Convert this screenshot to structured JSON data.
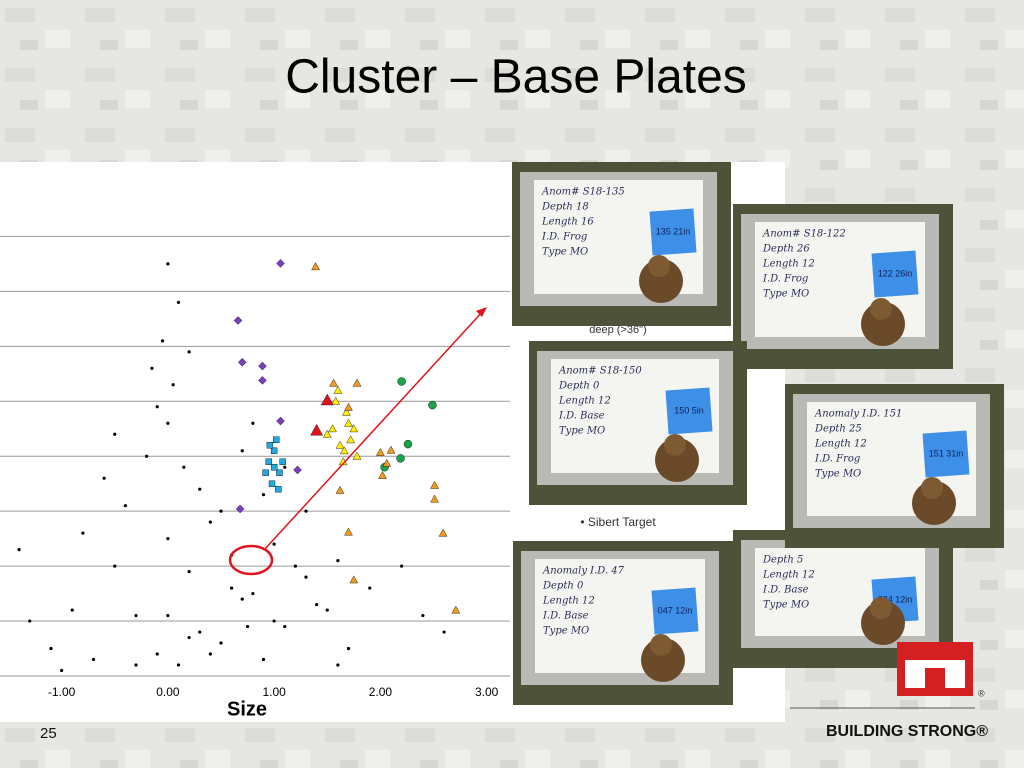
{
  "slide": {
    "title": "Cluster – Base Plates",
    "page_number": "25",
    "footer": "BUILDING STRONG®",
    "notes": [
      "deep (>36\")",
      "• Sibert Target"
    ]
  },
  "photos": [
    {
      "lines": [
        "Anom# S18-135",
        "Depth 18",
        "Length 16",
        "I.D. Frog",
        "Type MO"
      ],
      "tag": "135 21in"
    },
    {
      "lines": [
        "Anom# S18-122",
        "Depth 26",
        "Length 12",
        "I.D. Frog",
        "Type MO"
      ],
      "tag": "122 26in"
    },
    {
      "lines": [
        "Anom# S18-150",
        "Depth 0",
        "Length 12",
        "I.D. Base",
        "Type MO"
      ],
      "tag": "150 5in"
    },
    {
      "lines": [
        "Depth 5",
        "Length 12",
        "I.D. Base",
        "Type MO"
      ],
      "tag": "224 12in"
    },
    {
      "lines": [
        "Anomaly I.D. 151",
        "Depth 25",
        "Length 12",
        "I.D. Frog",
        "Type MO"
      ],
      "tag": "151 31in"
    },
    {
      "lines": [
        "Anomaly I.D. 47",
        "Depth 0",
        "Length 12",
        "I.D. Base",
        "Type MO"
      ],
      "tag": "047 12in"
    }
  ],
  "chart_data": {
    "type": "scatter",
    "xlabel": "Size",
    "xlim": [
      -1.58,
      3.22
    ],
    "ylim": [
      0,
      9.3
    ],
    "xticks": [
      {
        "value": -1,
        "label": "-1.00"
      },
      {
        "value": 0,
        "label": "0.00"
      },
      {
        "value": 1,
        "label": "1.00"
      },
      {
        "value": 2,
        "label": "2.00"
      },
      {
        "value": 3,
        "label": "3.00"
      }
    ],
    "yticks": [
      0,
      1,
      2,
      3,
      4,
      5,
      6,
      7,
      8
    ],
    "ytick_labels": false,
    "grid": true,
    "series": [
      {
        "color": "#000000",
        "marker": "circle",
        "x": [
          -1.1,
          -0.9,
          -0.7,
          -0.5,
          -0.3,
          -0.1,
          0.1,
          0.3,
          0.5,
          0.7,
          0.9,
          1.1,
          1.3,
          1.5,
          1.7,
          1.9,
          -0.8,
          -0.4,
          0.0,
          0.2,
          0.4,
          0.6,
          0.8,
          1.0,
          1.2,
          1.4,
          1.6,
          -0.6,
          -0.2,
          0.0,
          0.05,
          -0.05,
          0.1,
          0.2,
          -0.1,
          0.0,
          0.3,
          0.5,
          0.7,
          0.9,
          1.1,
          -1.3,
          -1.0,
          2.2,
          2.4,
          0.8,
          1.3,
          0.6,
          0.2,
          -0.3,
          0.15,
          -0.15,
          0.4,
          0.75,
          1.6,
          -1.4,
          2.6,
          -0.5,
          1.0,
          0.0
        ],
        "values": [
          0.5,
          1.2,
          0.3,
          2.0,
          1.1,
          0.4,
          0.2,
          0.8,
          0.6,
          1.4,
          0.3,
          0.9,
          1.8,
          1.2,
          0.5,
          1.6,
          2.6,
          3.1,
          2.5,
          1.9,
          2.8,
          2.2,
          1.5,
          2.4,
          2.0,
          1.3,
          2.1,
          3.6,
          4.0,
          4.6,
          5.3,
          6.1,
          6.8,
          5.9,
          4.9,
          7.5,
          3.4,
          3.0,
          4.1,
          3.3,
          3.8,
          1.0,
          0.1,
          2.0,
          1.1,
          4.6,
          3.0,
          1.6,
          0.7,
          0.2,
          3.8,
          5.6,
          0.4,
          0.9,
          0.2,
          2.3,
          0.8,
          4.4,
          1.0,
          1.1
        ]
      },
      {
        "color": "#ffee00",
        "marker": "triangle",
        "x": [
          1.55,
          1.62,
          1.68,
          1.72,
          1.78,
          1.6,
          1.65,
          1.7,
          1.5,
          1.58,
          1.75,
          1.66
        ],
        "values": [
          4.5,
          4.2,
          4.8,
          4.3,
          4.0,
          5.2,
          3.9,
          4.6,
          4.4,
          5.0,
          4.5,
          4.1
        ]
      },
      {
        "color": "#22a9e0",
        "marker": "square",
        "x": [
          0.95,
          1.0,
          1.05,
          0.98,
          1.02,
          1.08,
          0.92,
          1.0,
          1.04,
          0.96
        ],
        "values": [
          3.9,
          4.1,
          3.7,
          3.5,
          4.3,
          3.9,
          3.7,
          3.8,
          3.4,
          4.2
        ]
      },
      {
        "color": "#7b3fbf",
        "marker": "diamond",
        "x": [
          1.06,
          0.66,
          0.7,
          0.89,
          0.89,
          1.06,
          1.22,
          0.68
        ],
        "values": [
          7.51,
          6.47,
          5.71,
          5.64,
          5.38,
          4.64,
          3.75,
          3.04
        ]
      },
      {
        "color": "#1aa34a",
        "marker": "circle-big",
        "x": [
          2.2,
          2.49,
          2.26,
          2.19,
          2.04
        ],
        "values": [
          5.36,
          4.93,
          4.22,
          3.96,
          3.8
        ]
      },
      {
        "color": "#f39a1e",
        "marker": "triangle",
        "x": [
          1.39,
          1.56,
          1.78,
          1.7,
          2.0,
          2.02,
          2.06,
          2.51,
          2.51,
          2.59,
          2.71,
          1.7,
          1.75,
          1.62,
          2.1
        ],
        "values": [
          7.45,
          5.33,
          5.33,
          4.89,
          4.07,
          3.65,
          3.87,
          3.47,
          3.22,
          2.6,
          1.2,
          2.62,
          1.75,
          3.38,
          4.11
        ]
      },
      {
        "color": "#e0141c",
        "marker": "triangle-big",
        "x": [
          1.4,
          1.5
        ],
        "values": [
          4.47,
          5.02
        ]
      }
    ]
  }
}
